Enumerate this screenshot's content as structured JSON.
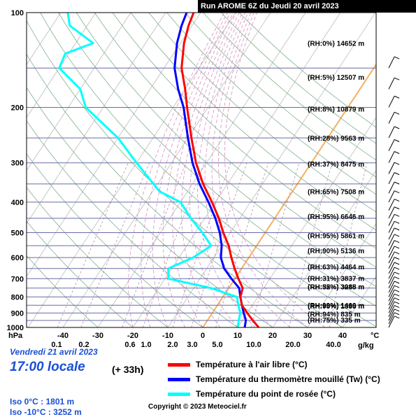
{
  "header": {
    "run_title": "Run AROME 6Z du Jeudi 20 avril 2023"
  },
  "axes": {
    "pressure_unit": "hPa",
    "temp_unit": "°C",
    "mixing_unit": "g/kg",
    "pressure_ticks": [
      "100",
      "200",
      "300",
      "400",
      "500",
      "600",
      "700",
      "800",
      "900",
      "1000"
    ],
    "temp_ticks": [
      "-40",
      "-30",
      "-20",
      "-10",
      "0",
      "10",
      "20",
      "30",
      "40"
    ],
    "mixing_ticks": [
      "0.1",
      "0.2",
      "0.6",
      "1.0",
      "2.0",
      "3.0",
      "5.0",
      "10.0",
      "20.0",
      "40.0"
    ]
  },
  "levels": [
    {
      "rh": "(RH:0%)",
      "height": "14652 m"
    },
    {
      "rh": "(RH:5%)",
      "height": "12507 m"
    },
    {
      "rh": "(RH:8%)",
      "height": "10879 m"
    },
    {
      "rh": "(RH:28%)",
      "height": "9563 m"
    },
    {
      "rh": "(RH:37%)",
      "height": "8475 m"
    },
    {
      "rh": "(RH:65%)",
      "height": "7508 m"
    },
    {
      "rh": "(RH:95%)",
      "height": "6646 m"
    },
    {
      "rh": "(RH:95%)",
      "height": "5861 m"
    },
    {
      "rh": "(RH:90%)",
      "height": "5136 m"
    },
    {
      "rh": "(RH:63%)",
      "height": "4464 m"
    },
    {
      "rh": "(RH:31%)",
      "height": "3837 m"
    },
    {
      "rh": "(RH:35%)",
      "height": "3248 m"
    },
    {
      "rh": "(RH:52%)",
      "height": "3085 m"
    },
    {
      "rh": "(RH:99%)",
      "height": "1460 m"
    },
    {
      "rh": "(RH:98%)",
      "height": "1335 m"
    },
    {
      "rh": "(RH:94%)",
      "height": "835 m"
    },
    {
      "rh": "(RH:75%)",
      "height": "335 m"
    }
  ],
  "footer": {
    "date": "Vendredi 21 avril 2023",
    "time": "17:00 locale",
    "lead": "(+ 33h)",
    "iso0": "Iso 0°C : 1801 m",
    "iso10": "Iso -10°C : 3252 m",
    "copyright": "Copyright © 2023 Meteociel.fr"
  },
  "legend": [
    {
      "label": "Température à l'air libre (°C)",
      "color": "#ff0000"
    },
    {
      "label": "Température du thermomètre mouillé (Tw) (°C)",
      "color": "#0000ff"
    },
    {
      "label": "Température du point de rosée (°C)",
      "color": "#00ffff"
    }
  ],
  "colors": {
    "isobar": "#6a6aa8",
    "isotherm": "#bbbbbb",
    "dry_adiabat": "#7fb08a",
    "moist_adiabat": "#d98fc0",
    "mixing_ratio": "#b58ab0",
    "zero_isotherm": "#f5b060"
  },
  "chart_data": {
    "type": "line",
    "title": "Run AROME 6Z du Jeudi 20 avril 2023",
    "xlabel": "°C",
    "ylabel": "hPa",
    "xlim": [
      -40,
      40
    ],
    "ylim": [
      1000,
      100
    ],
    "y_scale": "log",
    "skew": "skew-T",
    "series": [
      {
        "name": "Température à l'air libre (°C)",
        "color": "#ff0000",
        "points": [
          [
            1000,
            16
          ],
          [
            950,
            13
          ],
          [
            900,
            10
          ],
          [
            850,
            7
          ],
          [
            800,
            5
          ],
          [
            750,
            4
          ],
          [
            700,
            1
          ],
          [
            650,
            -2
          ],
          [
            600,
            -5
          ],
          [
            550,
            -8
          ],
          [
            500,
            -12
          ],
          [
            450,
            -16
          ],
          [
            400,
            -21
          ],
          [
            350,
            -27
          ],
          [
            300,
            -33
          ],
          [
            250,
            -39
          ],
          [
            200,
            -46
          ],
          [
            175,
            -50
          ],
          [
            150,
            -55
          ],
          [
            125,
            -59
          ],
          [
            110,
            -61
          ],
          [
            100,
            -62
          ]
        ]
      },
      {
        "name": "Température du thermomètre mouillé (Tw) (°C)",
        "color": "#0000ff",
        "points": [
          [
            1000,
            12
          ],
          [
            950,
            11
          ],
          [
            900,
            9
          ],
          [
            850,
            7
          ],
          [
            800,
            5
          ],
          [
            750,
            3
          ],
          [
            700,
            -1
          ],
          [
            650,
            -5
          ],
          [
            600,
            -8
          ],
          [
            550,
            -10
          ],
          [
            500,
            -13
          ],
          [
            450,
            -17
          ],
          [
            400,
            -22
          ],
          [
            350,
            -28
          ],
          [
            300,
            -34
          ],
          [
            250,
            -40
          ],
          [
            200,
            -47
          ],
          [
            175,
            -52
          ],
          [
            150,
            -57
          ],
          [
            125,
            -61
          ],
          [
            110,
            -63
          ],
          [
            100,
            -64
          ]
        ]
      },
      {
        "name": "Température du point de rosée (°C)",
        "color": "#00ffff",
        "points": [
          [
            1000,
            10
          ],
          [
            950,
            9
          ],
          [
            900,
            8
          ],
          [
            850,
            6
          ],
          [
            800,
            4
          ],
          [
            750,
            -5
          ],
          [
            700,
            -19
          ],
          [
            650,
            -21
          ],
          [
            600,
            -16
          ],
          [
            550,
            -13
          ],
          [
            500,
            -18
          ],
          [
            450,
            -24
          ],
          [
            400,
            -30
          ],
          [
            370,
            -38
          ],
          [
            300,
            -50
          ],
          [
            250,
            -60
          ],
          [
            200,
            -75
          ],
          [
            175,
            -80
          ],
          [
            150,
            -90
          ],
          [
            135,
            -91
          ],
          [
            125,
            -85
          ],
          [
            110,
            -95
          ],
          [
            100,
            -98
          ]
        ]
      }
    ]
  }
}
